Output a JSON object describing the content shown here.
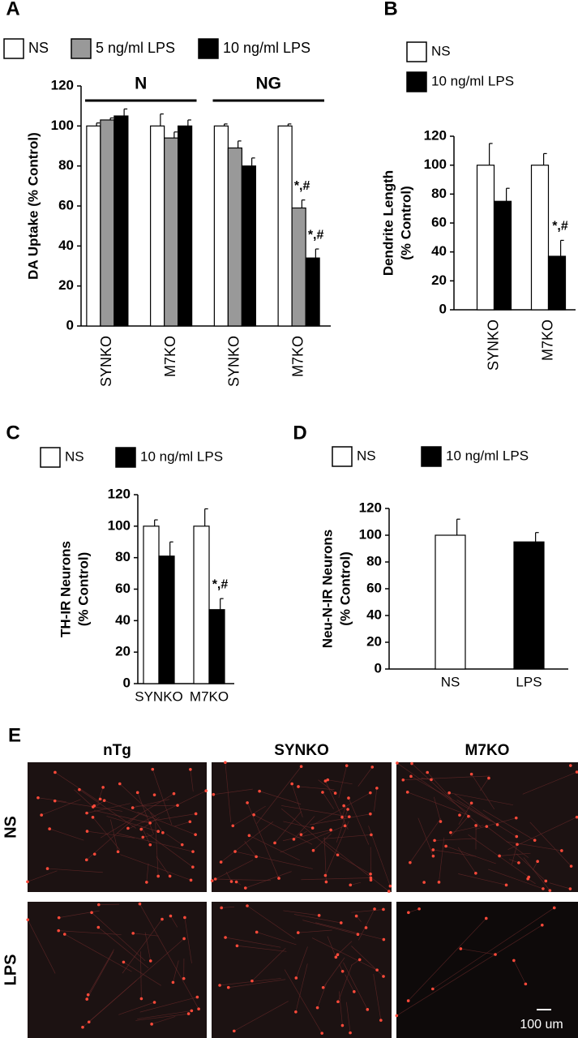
{
  "chart_data": [
    {
      "type": "bar",
      "panel": "A",
      "ylabel": [
        "DA Uptake (% Control)"
      ],
      "categories": [
        "SYNKO",
        "M7KO",
        "SYNKO",
        "M7KO"
      ],
      "group_labels": [
        "N",
        "NG"
      ],
      "series": [
        {
          "name": "NS",
          "color": "#ffffff",
          "values": [
            100,
            100,
            100,
            100
          ],
          "errors": [
            1.5,
            6,
            1,
            1
          ],
          "annotations": [
            null,
            null,
            null,
            null
          ]
        },
        {
          "name": "5 ng/ml LPS",
          "color": "#999999",
          "values": [
            103,
            94,
            89,
            59
          ],
          "errors": [
            1,
            3,
            3.5,
            4
          ],
          "annotations": [
            null,
            null,
            null,
            "*,#"
          ]
        },
        {
          "name": "10 ng/ml LPS",
          "color": "#000000",
          "values": [
            105,
            100,
            80,
            34
          ],
          "errors": [
            3.5,
            3,
            4,
            4.5
          ],
          "annotations": [
            null,
            null,
            null,
            "*,#"
          ]
        }
      ],
      "ylim": [
        0,
        120
      ],
      "yticks": [
        0,
        20,
        40,
        60,
        80,
        100,
        120
      ]
    },
    {
      "type": "bar",
      "panel": "B",
      "ylabel": [
        "Dendrite Length",
        "(% Control)"
      ],
      "categories": [
        "SYNKO",
        "M7KO"
      ],
      "series": [
        {
          "name": "NS",
          "color": "#ffffff",
          "values": [
            100,
            100
          ],
          "errors": [
            15,
            8
          ],
          "annotations": [
            null,
            null
          ]
        },
        {
          "name": "10 ng/ml LPS",
          "color": "#000000",
          "values": [
            75,
            37
          ],
          "errors": [
            9,
            11
          ],
          "annotations": [
            null,
            "*,#"
          ]
        }
      ],
      "ylim": [
        0,
        120
      ],
      "yticks": [
        0,
        20,
        40,
        60,
        80,
        100,
        120
      ]
    },
    {
      "type": "bar",
      "panel": "C",
      "ylabel": [
        "TH-IR Neurons",
        "(% Control)"
      ],
      "categories": [
        "SYNKO",
        "M7KO"
      ],
      "series": [
        {
          "name": "NS",
          "color": "#ffffff",
          "values": [
            100,
            100
          ],
          "errors": [
            4,
            11
          ],
          "annotations": [
            null,
            null
          ]
        },
        {
          "name": "10 ng/ml LPS",
          "color": "#000000",
          "values": [
            81,
            47
          ],
          "errors": [
            9,
            7
          ],
          "annotations": [
            null,
            "*,#"
          ]
        }
      ],
      "ylim": [
        0,
        120
      ],
      "yticks": [
        0,
        20,
        40,
        60,
        80,
        100,
        120
      ]
    },
    {
      "type": "bar",
      "panel": "D",
      "ylabel": [
        "Neu-N-IR Neurons",
        "(% Control)"
      ],
      "categories": [
        "NS",
        "LPS"
      ],
      "series": [
        {
          "name": "NS",
          "color": "#ffffff",
          "values": [
            100,
            null
          ],
          "errors": [
            12,
            null
          ],
          "annotations": [
            null,
            null
          ]
        },
        {
          "name": "10 ng/ml LPS",
          "color": "#000000",
          "values": [
            null,
            95
          ],
          "errors": [
            null,
            7
          ],
          "annotations": [
            null,
            null
          ]
        }
      ],
      "ylim": [
        0,
        120
      ],
      "yticks": [
        0,
        20,
        40,
        60,
        80,
        100,
        120
      ]
    }
  ],
  "panel_e": {
    "panel": "E",
    "columns": [
      "nTg",
      "SYNKO",
      "M7KO"
    ],
    "rows": [
      "NS",
      "LPS"
    ],
    "scale_bar": "100 um"
  }
}
